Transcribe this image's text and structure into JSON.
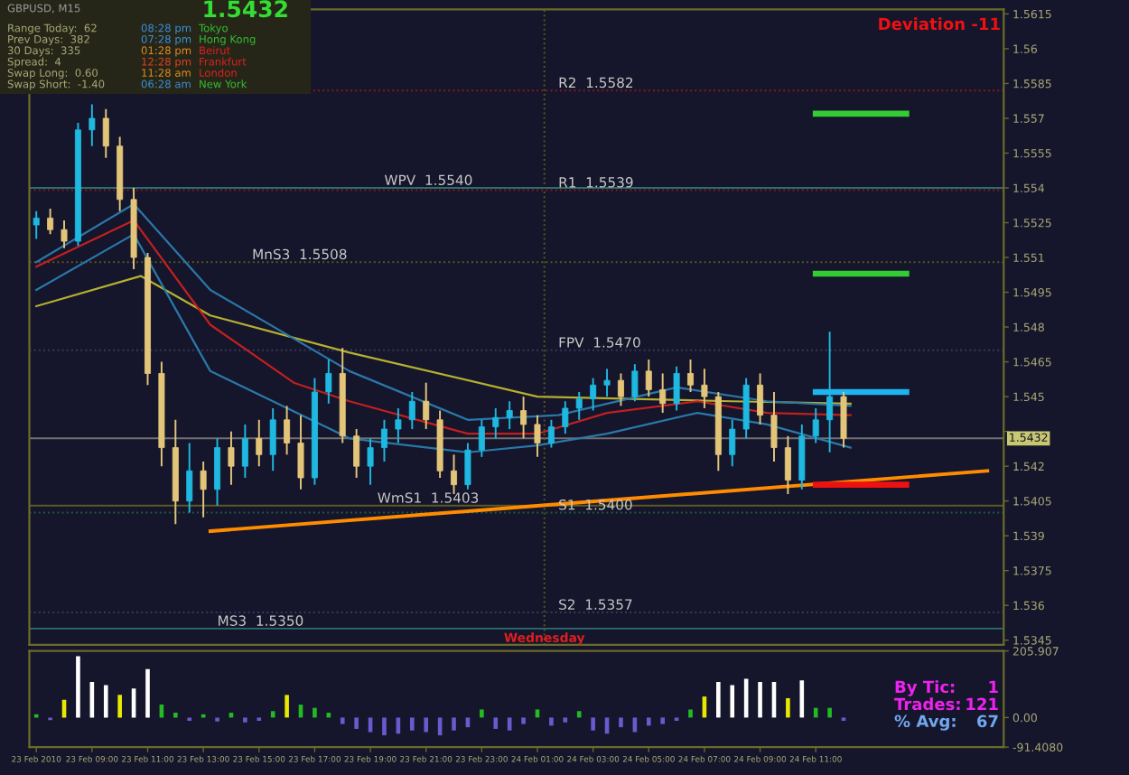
{
  "chart_data": [
    {
      "type": "candlestick",
      "x": [
        "2010-02-23T07:00",
        "2010-02-23T07:30",
        "2010-02-23T08:00",
        "2010-02-23T08:30",
        "2010-02-23T09:00",
        "2010-02-23T09:30",
        "2010-02-23T10:00",
        "2010-02-23T10:30",
        "2010-02-23T11:00",
        "2010-02-23T11:30",
        "2010-02-23T12:00",
        "2010-02-23T12:30",
        "2010-02-23T13:00",
        "2010-02-23T13:30",
        "2010-02-23T14:00",
        "2010-02-23T14:30",
        "2010-02-23T15:00",
        "2010-02-23T15:30",
        "2010-02-23T16:00",
        "2010-02-23T16:30",
        "2010-02-23T17:00",
        "2010-02-23T17:30",
        "2010-02-23T18:00",
        "2010-02-23T18:30",
        "2010-02-23T19:00",
        "2010-02-23T19:30",
        "2010-02-23T20:00",
        "2010-02-23T20:30",
        "2010-02-23T21:00",
        "2010-02-23T21:30",
        "2010-02-23T22:00",
        "2010-02-23T22:30",
        "2010-02-23T23:00",
        "2010-02-23T23:30",
        "2010-02-24T00:00",
        "2010-02-24T00:30",
        "2010-02-24T01:00",
        "2010-02-24T01:30",
        "2010-02-24T02:00",
        "2010-02-24T02:30",
        "2010-02-24T03:00",
        "2010-02-24T03:30",
        "2010-02-24T04:00",
        "2010-02-24T04:30",
        "2010-02-24T05:00",
        "2010-02-24T05:30",
        "2010-02-24T06:00",
        "2010-02-24T06:30",
        "2010-02-24T07:00",
        "2010-02-24T07:30",
        "2010-02-24T08:00",
        "2010-02-24T08:30",
        "2010-02-24T09:00",
        "2010-02-24T09:30",
        "2010-02-24T10:00",
        "2010-02-24T10:30",
        "2010-02-24T11:00",
        "2010-02-24T11:30",
        "2010-02-24T12:00"
      ],
      "ohlc": [
        [
          1.5524,
          1.553,
          1.5518,
          1.5527
        ],
        [
          1.5527,
          1.5531,
          1.552,
          1.5522
        ],
        [
          1.5522,
          1.5526,
          1.5514,
          1.5517
        ],
        [
          1.5517,
          1.5568,
          1.5515,
          1.5565
        ],
        [
          1.5565,
          1.5576,
          1.5558,
          1.557
        ],
        [
          1.557,
          1.5574,
          1.5553,
          1.5558
        ],
        [
          1.5558,
          1.5562,
          1.553,
          1.5535
        ],
        [
          1.5535,
          1.554,
          1.5505,
          1.551
        ],
        [
          1.551,
          1.5512,
          1.5455,
          1.546
        ],
        [
          1.546,
          1.5465,
          1.542,
          1.5428
        ],
        [
          1.5428,
          1.544,
          1.5395,
          1.5405
        ],
        [
          1.5405,
          1.543,
          1.54,
          1.5418
        ],
        [
          1.5418,
          1.5422,
          1.5398,
          1.541
        ],
        [
          1.541,
          1.5432,
          1.5403,
          1.5428
        ],
        [
          1.5428,
          1.5435,
          1.5412,
          1.542
        ],
        [
          1.542,
          1.5438,
          1.5415,
          1.5432
        ],
        [
          1.5432,
          1.544,
          1.542,
          1.5425
        ],
        [
          1.5425,
          1.5445,
          1.5418,
          1.544
        ],
        [
          1.544,
          1.5446,
          1.5425,
          1.543
        ],
        [
          1.543,
          1.5442,
          1.541,
          1.5415
        ],
        [
          1.5415,
          1.5458,
          1.5412,
          1.5452
        ],
        [
          1.5452,
          1.5466,
          1.5447,
          1.546
        ],
        [
          1.546,
          1.5471,
          1.543,
          1.5433
        ],
        [
          1.5433,
          1.5436,
          1.5415,
          1.542
        ],
        [
          1.542,
          1.5432,
          1.5412,
          1.5428
        ],
        [
          1.5428,
          1.544,
          1.5422,
          1.5436
        ],
        [
          1.5436,
          1.5445,
          1.543,
          1.544
        ],
        [
          1.544,
          1.5452,
          1.5436,
          1.5448
        ],
        [
          1.5448,
          1.5456,
          1.5436,
          1.544
        ],
        [
          1.544,
          1.5444,
          1.5415,
          1.5418
        ],
        [
          1.5418,
          1.5425,
          1.5408,
          1.5412
        ],
        [
          1.5412,
          1.543,
          1.541,
          1.5427
        ],
        [
          1.5427,
          1.544,
          1.5424,
          1.5437
        ],
        [
          1.5437,
          1.5445,
          1.5432,
          1.5441
        ],
        [
          1.5441,
          1.5448,
          1.5436,
          1.5444
        ],
        [
          1.5444,
          1.545,
          1.5432,
          1.5438
        ],
        [
          1.5438,
          1.5442,
          1.5424,
          1.543
        ],
        [
          1.543,
          1.544,
          1.5428,
          1.5437
        ],
        [
          1.5437,
          1.5448,
          1.5434,
          1.5445
        ],
        [
          1.5445,
          1.5452,
          1.544,
          1.5449
        ],
        [
          1.5449,
          1.5458,
          1.5444,
          1.5455
        ],
        [
          1.5455,
          1.5462,
          1.545,
          1.5457
        ],
        [
          1.5457,
          1.546,
          1.5446,
          1.545
        ],
        [
          1.545,
          1.5464,
          1.5448,
          1.5461
        ],
        [
          1.5461,
          1.5466,
          1.545,
          1.5453
        ],
        [
          1.5453,
          1.546,
          1.5443,
          1.5447
        ],
        [
          1.5447,
          1.5463,
          1.5444,
          1.546
        ],
        [
          1.546,
          1.5466,
          1.5452,
          1.5455
        ],
        [
          1.5455,
          1.5462,
          1.5445,
          1.545
        ],
        [
          1.545,
          1.5452,
          1.5418,
          1.5425
        ],
        [
          1.5425,
          1.544,
          1.542,
          1.5436
        ],
        [
          1.5436,
          1.5458,
          1.5432,
          1.5455
        ],
        [
          1.5455,
          1.546,
          1.5438,
          1.5442
        ],
        [
          1.5442,
          1.5452,
          1.5422,
          1.5428
        ],
        [
          1.5428,
          1.5433,
          1.5408,
          1.5414
        ],
        [
          1.5414,
          1.5438,
          1.541,
          1.5433
        ],
        [
          1.5433,
          1.5445,
          1.543,
          1.544
        ],
        [
          1.544,
          1.5478,
          1.5426,
          1.545
        ],
        [
          1.545,
          1.5452,
          1.5428,
          1.5432
        ]
      ],
      "colors": [
        "#1fb8e0",
        "#e3c57a",
        "#e3c57a",
        "#1fb8e0",
        "#1fb8e0",
        "#e3c57a",
        "#e3c57a",
        "#e3c57a",
        "#e3c57a",
        "#e3c57a",
        "#e3c57a",
        "#1fb8e0",
        "#e3c57a",
        "#1fb8e0",
        "#e3c57a",
        "#1fb8e0",
        "#e3c57a",
        "#1fb8e0",
        "#e3c57a",
        "#e3c57a",
        "#1fb8e0",
        "#1fb8e0",
        "#e3c57a",
        "#e3c57a",
        "#1fb8e0",
        "#1fb8e0",
        "#1fb8e0",
        "#1fb8e0",
        "#e3c57a",
        "#e3c57a",
        "#e3c57a",
        "#1fb8e0",
        "#1fb8e0",
        "#1fb8e0",
        "#1fb8e0",
        "#e3c57a",
        "#e3c57a",
        "#1fb8e0",
        "#1fb8e0",
        "#1fb8e0",
        "#1fb8e0",
        "#1fb8e0",
        "#e3c57a",
        "#1fb8e0",
        "#e3c57a",
        "#e3c57a",
        "#1fb8e0",
        "#e3c57a",
        "#e3c57a",
        "#e3c57a",
        "#1fb8e0",
        "#1fb8e0",
        "#e3c57a",
        "#e3c57a",
        "#e3c57a",
        "#1fb8e0",
        "#1fb8e0",
        "#1fb8e0",
        "#e3c57a"
      ],
      "series": [
        {
          "type": "line",
          "color": "#b5b030",
          "x": [
            "2010-02-23T07:00",
            "2010-02-23T10:45",
            "2010-02-23T13:15",
            "2010-02-23T18:15",
            "2010-02-24T01:00",
            "2010-02-24T08:00",
            "2010-02-24T12:15"
          ],
          "values": [
            1.5489,
            1.5502,
            1.5485,
            1.5469,
            1.545,
            1.5448,
            1.5447
          ]
        },
        {
          "type": "line",
          "color": "#c02020",
          "x": [
            "2010-02-23T07:00",
            "2010-02-23T10:30",
            "2010-02-23T13:15",
            "2010-02-23T16:15",
            "2010-02-23T18:15",
            "2010-02-23T22:30",
            "2010-02-24T01:00",
            "2010-02-24T03:30",
            "2010-02-24T06:45",
            "2010-02-24T09:15",
            "2010-02-24T12:15"
          ],
          "values": [
            1.5506,
            1.5526,
            1.5481,
            1.5456,
            1.5448,
            1.5434,
            1.5434,
            1.5443,
            1.5448,
            1.5443,
            1.5442
          ]
        },
        {
          "type": "line",
          "color": "#2a78a8",
          "x": [
            "2010-02-23T07:00",
            "2010-02-23T10:30",
            "2010-02-23T13:15",
            "2010-02-23T18:15",
            "2010-02-23T22:30",
            "2010-02-24T01:45",
            "2010-02-24T06:00",
            "2010-02-24T09:15",
            "2010-02-24T12:15"
          ],
          "values": [
            1.5508,
            1.5533,
            1.5496,
            1.5461,
            1.544,
            1.5442,
            1.5454,
            1.5448,
            1.5446
          ]
        },
        {
          "type": "line",
          "color": "#2a78a8",
          "x": [
            "2010-02-23T07:00",
            "2010-02-23T10:30",
            "2010-02-23T13:15",
            "2010-02-23T18:15",
            "2010-02-23T22:30",
            "2010-02-24T01:00",
            "2010-02-24T03:30",
            "2010-02-24T06:45",
            "2010-02-24T09:15",
            "2010-02-24T12:15"
          ],
          "values": [
            1.5496,
            1.552,
            1.5461,
            1.5432,
            1.5426,
            1.5429,
            1.5434,
            1.5443,
            1.5438,
            1.5428
          ]
        },
        {
          "type": "line",
          "color": "#ff8c00",
          "x": [
            "2010-02-23T13:15",
            "2010-02-24T17:10"
          ],
          "values": [
            1.5392,
            1.5418
          ]
        },
        {
          "type": "line",
          "color": "#33cc33",
          "x": [
            "2010-02-24T11:00",
            "2010-02-24T14:15"
          ],
          "values": [
            1.5572,
            1.5572
          ]
        },
        {
          "type": "line",
          "color": "#33cc33",
          "x": [
            "2010-02-24T11:00",
            "2010-02-24T14:15"
          ],
          "values": [
            1.5503,
            1.5503
          ]
        },
        {
          "type": "line",
          "color": "#1eb4f0",
          "x": [
            "2010-02-24T11:00",
            "2010-02-24T14:15"
          ],
          "values": [
            1.5452,
            1.5452
          ]
        },
        {
          "type": "line",
          "color": "#ee1111",
          "x": [
            "2010-02-24T11:00",
            "2010-02-24T14:15"
          ],
          "values": [
            1.5412,
            1.5412
          ]
        }
      ],
      "ref_lines": [
        {
          "axis": "y",
          "value": 1.5582,
          "color": "#8b1a1a",
          "line_style": "dotted"
        },
        {
          "axis": "y",
          "value": 1.5539,
          "color": "#8b1a1a",
          "line_style": "dotted"
        },
        {
          "axis": "y",
          "value": 1.554,
          "color": "#2a6f6f",
          "line_style": "solid"
        },
        {
          "axis": "y",
          "value": 1.5508,
          "color": "#5a5a20",
          "line_style": "dotted"
        },
        {
          "axis": "y",
          "value": 1.547,
          "color": "#3a3a5a",
          "line_style": "dotted"
        },
        {
          "axis": "y",
          "value": 1.5403,
          "color": "#5a5a20",
          "line_style": "solid"
        },
        {
          "axis": "y",
          "value": 1.54,
          "color": "#1f5f3f",
          "line_style": "dotted"
        },
        {
          "axis": "y",
          "value": 1.5357,
          "color": "#3a3a5a",
          "line_style": "dotted"
        },
        {
          "axis": "y",
          "value": 1.535,
          "color": "#2a6f6f",
          "line_style": "solid"
        },
        {
          "axis": "y",
          "value": 1.5432,
          "color": "#707070",
          "line_style": "solid",
          "label": "1.5432"
        },
        {
          "axis": "x",
          "value": "2010-02-24T01:15",
          "color": "#5a5a20",
          "line_style": "dotted",
          "label": "Wednesday"
        }
      ],
      "annotations": [
        {
          "text": "R2  1.5582",
          "x": "2010-02-24T01:45",
          "y": 1.5582
        },
        {
          "text": "R1  1.5539",
          "x": "2010-02-24T01:45",
          "y": 1.5539
        },
        {
          "text": "WPV  1.5540",
          "x": "2010-02-23T19:30",
          "y": 1.554
        },
        {
          "text": "MnS3  1.5508",
          "x": "2010-02-23T14:45",
          "y": 1.5508
        },
        {
          "text": "FPV  1.5470",
          "x": "2010-02-24T01:45",
          "y": 1.547
        },
        {
          "text": "WmS1  1.5403",
          "x": "2010-02-23T19:15",
          "y": 1.5403
        },
        {
          "text": "S1  1.5400",
          "x": "2010-02-24T01:45",
          "y": 1.54
        },
        {
          "text": "S2  1.5357",
          "x": "2010-02-24T01:45",
          "y": 1.5357
        },
        {
          "text": "MS3  1.5350",
          "x": "2010-02-23T13:30",
          "y": 1.535
        },
        "GBPUSD, M15",
        "1.5432",
        "Range Today:  62",
        "Prev Days:  382",
        "30 Days:  335",
        "Spread:  4",
        "Swap Long:  0.60",
        "Swap Short:  -1.40",
        "08:28 pm",
        "07:28 pm",
        "01:28 pm",
        "12:28 pm",
        "11:28 am",
        "06:28 am",
        "Tokyo",
        "Hong Kong",
        "Beirut",
        "Frankfurt",
        "London",
        "New York",
        "Deviation -11"
      ],
      "xlim": [
        "2010-02-23T06:45",
        "2010-02-24T17:45"
      ],
      "ylim": [
        1.5343,
        1.5617
      ],
      "yticks": [
        1.5345,
        1.536,
        1.5375,
        1.539,
        1.5405,
        1.542,
        {
          "value": 1.5435,
          "label": null
        },
        1.545,
        1.5465,
        1.548,
        1.5495,
        1.551,
        1.5525,
        1.554,
        1.5555,
        1.557,
        1.5585,
        1.56,
        1.5615
      ],
      "tick_labels": "y",
      "grid": false
    },
    {
      "type": "bar",
      "x": [
        "2010-02-23T07:00",
        "2010-02-23T07:30",
        "2010-02-23T08:00",
        "2010-02-23T08:30",
        "2010-02-23T09:00",
        "2010-02-23T09:30",
        "2010-02-23T10:00",
        "2010-02-23T10:30",
        "2010-02-23T11:00",
        "2010-02-23T11:30",
        "2010-02-23T12:00",
        "2010-02-23T12:30",
        "2010-02-23T13:00",
        "2010-02-23T13:30",
        "2010-02-23T14:00",
        "2010-02-23T14:30",
        "2010-02-23T15:00",
        "2010-02-23T15:30",
        "2010-02-23T16:00",
        "2010-02-23T16:30",
        "2010-02-23T17:00",
        "2010-02-23T17:30",
        "2010-02-23T18:00",
        "2010-02-23T18:30",
        "2010-02-23T19:00",
        "2010-02-23T19:30",
        "2010-02-23T20:00",
        "2010-02-23T20:30",
        "2010-02-23T21:00",
        "2010-02-23T21:30",
        "2010-02-23T22:00",
        "2010-02-23T22:30",
        "2010-02-23T23:00",
        "2010-02-23T23:30",
        "2010-02-24T00:00",
        "2010-02-24T00:30",
        "2010-02-24T01:00",
        "2010-02-24T01:30",
        "2010-02-24T02:00",
        "2010-02-24T02:30",
        "2010-02-24T03:00",
        "2010-02-24T03:30",
        "2010-02-24T04:00",
        "2010-02-24T04:30",
        "2010-02-24T05:00",
        "2010-02-24T05:30",
        "2010-02-24T06:00",
        "2010-02-24T06:30",
        "2010-02-24T07:00",
        "2010-02-24T07:30",
        "2010-02-24T08:00",
        "2010-02-24T08:30",
        "2010-02-24T09:00",
        "2010-02-24T09:30",
        "2010-02-24T10:00",
        "2010-02-24T10:30",
        "2010-02-24T11:00",
        "2010-02-24T11:30",
        "2010-02-24T12:00"
      ],
      "values": [
        10,
        -8,
        55,
        190,
        110,
        100,
        70,
        90,
        150,
        40,
        15,
        -10,
        10,
        -12,
        15,
        -15,
        -10,
        20,
        70,
        40,
        30,
        15,
        -20,
        -35,
        -45,
        -55,
        -50,
        -40,
        -45,
        -55,
        -40,
        -30,
        25,
        -35,
        -40,
        -20,
        25,
        -25,
        -15,
        20,
        -40,
        -50,
        -30,
        -45,
        -25,
        -20,
        -10,
        25,
        65,
        110,
        100,
        120,
        110,
        110,
        60,
        115,
        30,
        30,
        -10
      ],
      "colors": [
        "#22bb22",
        "#6a5acd",
        "#e8e800",
        "#ffffff",
        "#ffffff",
        "#ffffff",
        "#e8e800",
        "#ffffff",
        "#ffffff",
        "#22bb22",
        "#22bb22",
        "#6a5acd",
        "#22bb22",
        "#6a5acd",
        "#22bb22",
        "#6a5acd",
        "#6a5acd",
        "#22bb22",
        "#e8e800",
        "#22bb22",
        "#22bb22",
        "#22bb22",
        "#6a5acd",
        "#6a5acd",
        "#6a5acd",
        "#6a5acd",
        "#6a5acd",
        "#6a5acd",
        "#6a5acd",
        "#6a5acd",
        "#6a5acd",
        "#6a5acd",
        "#22bb22",
        "#6a5acd",
        "#6a5acd",
        "#6a5acd",
        "#22bb22",
        "#6a5acd",
        "#6a5acd",
        "#22bb22",
        "#6a5acd",
        "#6a5acd",
        "#6a5acd",
        "#6a5acd",
        "#6a5acd",
        "#6a5acd",
        "#6a5acd",
        "#22bb22",
        "#e8e800",
        "#ffffff",
        "#ffffff",
        "#ffffff",
        "#ffffff",
        "#ffffff",
        "#e8e800",
        "#ffffff",
        "#22bb22",
        "#22bb22",
        "#6a5acd"
      ],
      "xlim": [
        "2010-02-23T06:45",
        "2010-02-24T17:45"
      ],
      "ylim": [
        -91.408,
        205.907
      ],
      "yticks": [
        {
          "value": 205.907,
          "label": "205.907"
        },
        {
          "value": 0,
          "label": "0.00"
        },
        {
          "value": -91.408,
          "label": "-91.4080"
        }
      ],
      "xticks": [
        {
          "value": "2010-02-23T07:00",
          "label": "23 Feb 2010"
        },
        {
          "value": "2010-02-23T09:00",
          "label": "23 Feb 09:00"
        },
        {
          "value": "2010-02-23T11:00",
          "label": "23 Feb 11:00"
        },
        {
          "value": "2010-02-23T13:00",
          "label": "23 Feb 13:00"
        },
        {
          "value": "2010-02-23T15:00",
          "label": "23 Feb 15:00"
        },
        {
          "value": "2010-02-23T17:00",
          "label": "23 Feb 17:00"
        },
        {
          "value": "2010-02-23T19:00",
          "label": "23 Feb 19:00"
        },
        {
          "value": "2010-02-23T21:00",
          "label": "23 Feb 21:00"
        },
        {
          "value": "2010-02-23T23:00",
          "label": "23 Feb 23:00"
        },
        {
          "value": "2010-02-24T01:00",
          "label": "24 Feb 01:00"
        },
        {
          "value": "2010-02-24T03:00",
          "label": "24 Feb 03:00"
        },
        {
          "value": "2010-02-24T05:00",
          "label": "24 Feb 05:00"
        },
        {
          "value": "2010-02-24T07:00",
          "label": "24 Feb 07:00"
        },
        {
          "value": "2010-02-24T09:00",
          "label": "24 Feb 09:00"
        },
        {
          "value": "2010-02-24T11:00",
          "label": "24 Feb 11:00"
        }
      ],
      "annotations": [
        "By Tic:",
        "1",
        "Trades:",
        "121",
        "% Avg:",
        "67"
      ],
      "grid": false
    }
  ]
}
